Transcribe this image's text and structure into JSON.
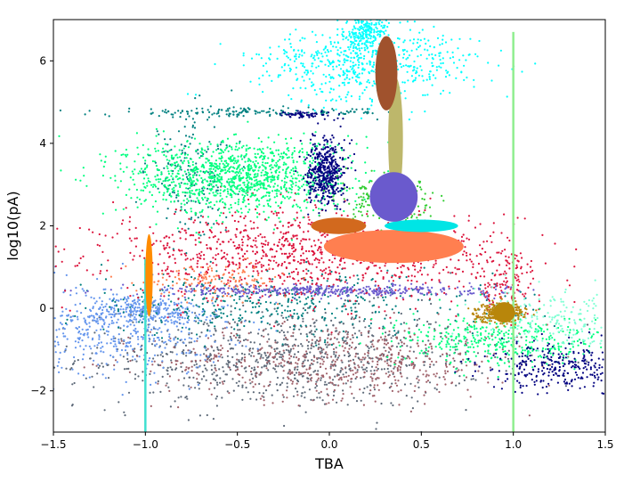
{
  "chart_data": {
    "type": "scatter",
    "xlabel": "TBA",
    "ylabel": "log10(pA)",
    "xlim": [
      -1.5,
      1.5
    ],
    "ylim": [
      -3,
      7
    ],
    "x_ticks": [
      -1.5,
      -1.0,
      -0.5,
      0.0,
      0.5,
      1.0,
      1.5
    ],
    "x_tick_labels": [
      "−1.5",
      "−1.0",
      "−0.5",
      "0.0",
      "0.5",
      "1.0",
      "1.5"
    ],
    "y_ticks": [
      -2,
      0,
      2,
      4,
      6
    ],
    "y_tick_labels": [
      "−2",
      "0",
      "2",
      "4",
      "6"
    ],
    "grid": false,
    "series": [
      {
        "color": "#5f6b7a",
        "blobs": [
          {
            "cx": -0.25,
            "cy": -1.2,
            "sx": 0.55,
            "sy": 0.6,
            "n": 900
          }
        ]
      },
      {
        "color": "#a0626b",
        "blobs": [
          {
            "cx": 0.05,
            "cy": -1.3,
            "sx": 0.5,
            "sy": 0.45,
            "n": 600
          }
        ]
      },
      {
        "color": "#6495ed",
        "blobs": [
          {
            "cx": -1.15,
            "cy": -0.5,
            "sx": 0.3,
            "sy": 0.55,
            "n": 500
          },
          {
            "cx": -1.0,
            "cy": -0.05,
            "sx": 0.15,
            "sy": 0.15,
            "n": 250
          }
        ]
      },
      {
        "color": "#008080",
        "blobs": [
          {
            "cx": -0.3,
            "cy": 0.1,
            "sx": 0.6,
            "sy": 0.4,
            "n": 450
          },
          {
            "cx": -0.75,
            "cy": 3.3,
            "sx": 0.12,
            "sy": 0.7,
            "n": 180
          },
          {
            "cx": -0.4,
            "cy": 4.75,
            "sx": 0.4,
            "sy": 0.05,
            "n": 160
          }
        ]
      },
      {
        "color": "#dc143c",
        "blobs": [
          {
            "cx": -0.1,
            "cy": 1.3,
            "sx": 0.55,
            "sy": 0.55,
            "n": 1100
          },
          {
            "cx": 0.95,
            "cy": 0.6,
            "sx": 0.1,
            "sy": 0.4,
            "n": 120
          }
        ]
      },
      {
        "color": "#ff7f50",
        "blobs": [
          {
            "cx": -0.6,
            "cy": 0.7,
            "sx": 0.2,
            "sy": 0.2,
            "n": 150
          }
        ]
      },
      {
        "color": "#6a5acd",
        "blobs": [
          {
            "cx": 0.0,
            "cy": 0.43,
            "sx": 0.45,
            "sy": 0.07,
            "n": 400
          }
        ]
      },
      {
        "color": "#00ff7f",
        "blobs": [
          {
            "cx": -0.5,
            "cy": 3.2,
            "sx": 0.3,
            "sy": 0.45,
            "n": 1200
          },
          {
            "cx": 0.95,
            "cy": -0.8,
            "sx": 0.3,
            "sy": 0.3,
            "n": 400
          }
        ]
      },
      {
        "color": "#7fffd4",
        "blobs": [
          {
            "cx": 1.2,
            "cy": -0.3,
            "sx": 0.2,
            "sy": 0.35,
            "n": 200
          }
        ]
      },
      {
        "color": "#000080",
        "blobs": [
          {
            "cx": -0.02,
            "cy": 3.3,
            "sx": 0.05,
            "sy": 0.4,
            "n": 450
          },
          {
            "cx": 1.25,
            "cy": -1.4,
            "sx": 0.2,
            "sy": 0.3,
            "n": 300
          },
          {
            "cx": -0.12,
            "cy": 4.7,
            "sx": 0.08,
            "sy": 0.04,
            "n": 60
          }
        ]
      },
      {
        "color": "#00ffff",
        "blobs": [
          {
            "cx": 0.2,
            "cy": 5.9,
            "sx": 0.3,
            "sy": 0.45,
            "n": 600
          },
          {
            "cx": 0.2,
            "cy": 6.7,
            "sx": 0.06,
            "sy": 0.3,
            "n": 250
          }
        ]
      },
      {
        "color": "#32cd32",
        "blobs": [
          {
            "cx": 0.35,
            "cy": 2.6,
            "sx": 0.12,
            "sy": 0.25,
            "n": 250
          }
        ]
      },
      {
        "color": "#b8860b",
        "blobs": [
          {
            "cx": 0.93,
            "cy": -0.1,
            "sx": 0.07,
            "sy": 0.12,
            "n": 300
          }
        ]
      }
    ],
    "patches": [
      {
        "shape": "ellipse",
        "color": "#ff7f50",
        "cx": 0.35,
        "cy": 1.5,
        "rx": 0.38,
        "ry": 0.4
      },
      {
        "shape": "ellipse",
        "color": "#d2691e",
        "cx": 0.05,
        "cy": 2.0,
        "rx": 0.15,
        "ry": 0.2
      },
      {
        "shape": "ellipse",
        "color": "#00e5e5",
        "cx": 0.5,
        "cy": 2.0,
        "rx": 0.2,
        "ry": 0.15
      },
      {
        "shape": "ellipse",
        "color": "#bdb76b",
        "cx": 0.36,
        "cy": 4.1,
        "rx": 0.04,
        "ry": 1.5
      },
      {
        "shape": "ellipse",
        "color": "#a0522d",
        "cx": 0.31,
        "cy": 5.7,
        "rx": 0.06,
        "ry": 0.9
      },
      {
        "shape": "ellipse",
        "color": "#6a5acd",
        "cx": 0.35,
        "cy": 2.7,
        "rx": 0.13,
        "ry": 0.6
      },
      {
        "shape": "ellipse",
        "color": "#ff8c00",
        "cx": -0.98,
        "cy": 0.8,
        "rx": 0.02,
        "ry": 1.0
      },
      {
        "shape": "ellipse",
        "color": "#b8860b",
        "cx": 0.95,
        "cy": -0.1,
        "rx": 0.06,
        "ry": 0.25
      }
    ],
    "verticals": [
      {
        "color": "#40e0d0",
        "x": -1.0,
        "y0": -3.0,
        "y1": 1.2
      },
      {
        "color": "#90ee90",
        "x": 1.0,
        "y0": -3.0,
        "y1": 6.7
      }
    ]
  }
}
